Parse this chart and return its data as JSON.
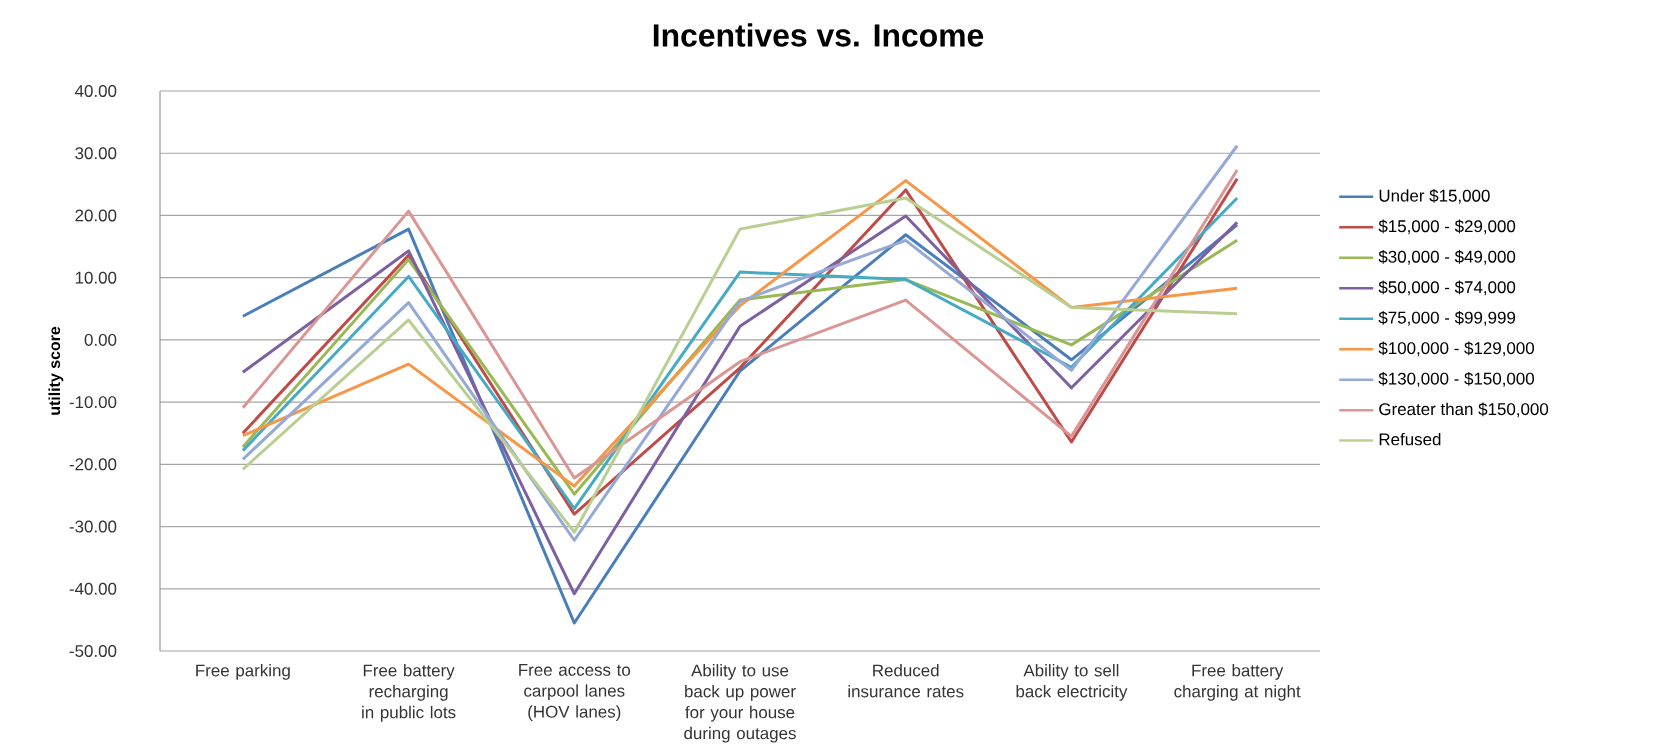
{
  "chart_data": {
    "type": "line",
    "title": "Incentives vs. Income",
    "ylabel": "utility score",
    "categories": [
      "Free parking",
      "Free battery recharging in public lots",
      "Free access to carpool lanes (HOV lanes)",
      "Ability to use back up power for your house during outages",
      "Reduced insurance rates",
      "Ability to sell back electricity",
      "Free battery charging at night"
    ],
    "series": [
      {
        "name": "Under $15,000",
        "color": "#4a7ebb",
        "values": [
          3.8,
          17.8,
          -45.5,
          -5,
          16.9,
          -3.2,
          18.5
        ]
      },
      {
        "name": "$15,000 - $29,000",
        "color": "#be4b48",
        "values": [
          -15,
          13.6,
          -28,
          -4.5,
          24.1,
          -16.4,
          25.9
        ]
      },
      {
        "name": "$30,000 - $49,000",
        "color": "#98b954",
        "values": [
          -17.2,
          12.9,
          -24.8,
          6.4,
          9.7,
          -0.8,
          16
        ]
      },
      {
        "name": "$50,000 - $74,000",
        "color": "#7d60a0",
        "values": [
          -5.2,
          14.3,
          -40.8,
          2.2,
          19.9,
          -7.7,
          18.9
        ]
      },
      {
        "name": "$75,000 - $99,999",
        "color": "#46aac5",
        "values": [
          -17.8,
          10.2,
          -27.1,
          10.9,
          9.7,
          -4.4,
          22.8
        ]
      },
      {
        "name": "$100,000 - $129,000",
        "color": "#f79646",
        "values": [
          -15.4,
          -3.9,
          -23.5,
          5.5,
          25.6,
          5.2,
          8.3
        ]
      },
      {
        "name": "$130,000 - $150,000",
        "color": "#95a9d6",
        "values": [
          -19.2,
          6,
          -32.2,
          6.2,
          16,
          -4.9,
          31.2
        ]
      },
      {
        "name": "Greater than $150,000",
        "color": "#d99694",
        "values": [
          -10.9,
          20.7,
          -22.2,
          -3.5,
          6.4,
          -15.5,
          27.3
        ]
      },
      {
        "name": "Refused",
        "color": "#b9cf92",
        "values": [
          -20.8,
          3.2,
          -30.9,
          17.8,
          22.8,
          5.2,
          4.2
        ]
      }
    ],
    "ylim": [
      -50,
      40
    ],
    "yticks": [
      {
        "value": -50,
        "label": "-50.00"
      },
      {
        "value": -40,
        "label": "-40.00"
      },
      {
        "value": -30,
        "label": "-30.00"
      },
      {
        "value": -20,
        "label": "-20.00"
      },
      {
        "value": -10,
        "label": "-10.00"
      },
      {
        "value": 0,
        "label": "0.00"
      },
      {
        "value": 10,
        "label": "10.00"
      },
      {
        "value": 20,
        "label": "20.00"
      },
      {
        "value": 30,
        "label": "30.00"
      },
      {
        "value": 40,
        "label": "40.00"
      }
    ],
    "grid": "y",
    "legend": "right"
  }
}
